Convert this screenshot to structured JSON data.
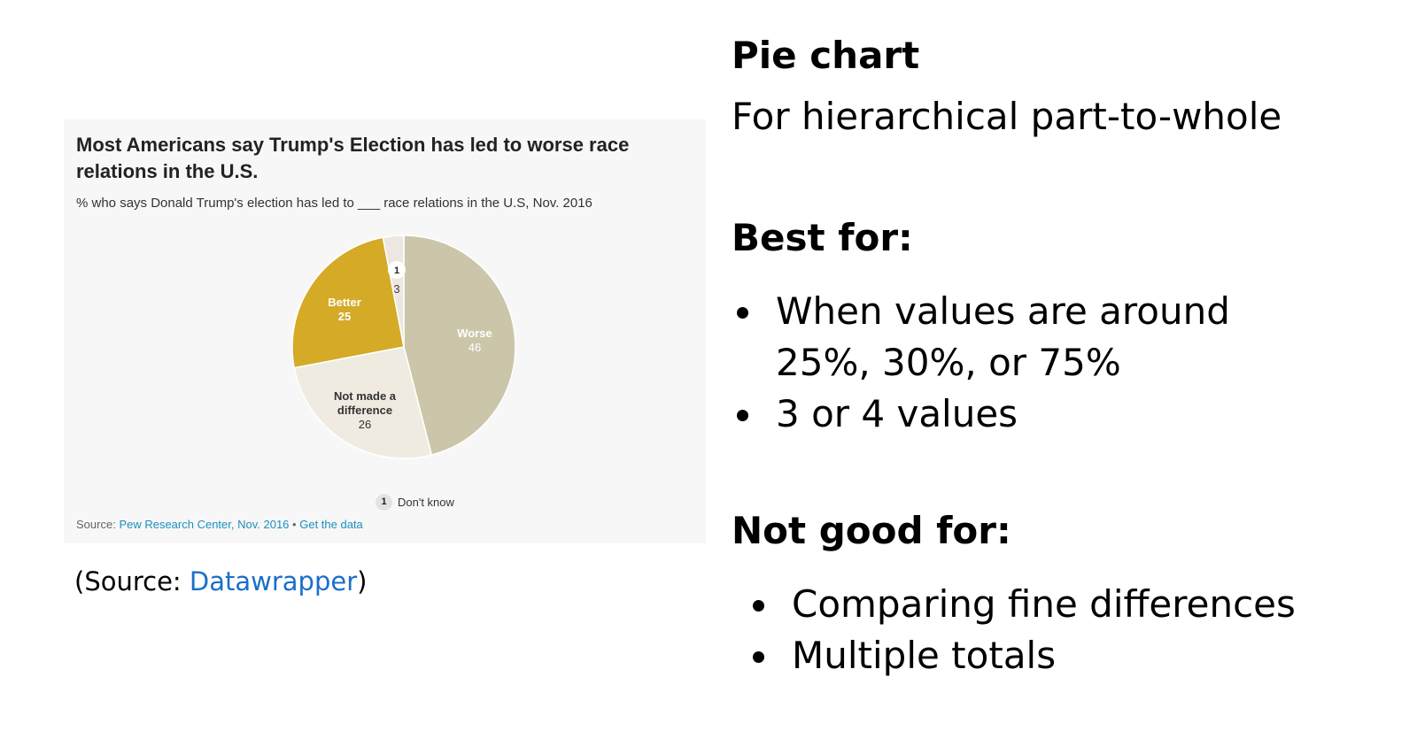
{
  "chart_data": {
    "type": "pie",
    "title": "Most Americans say Trump's Election has led to worse race relations in the U.S.",
    "subtitle": "% who says Donald Trump's election has led to ___ race relations in the U.S, Nov. 2016",
    "slices": [
      {
        "label": "Worse",
        "value": 46,
        "color": "#cbc6a9"
      },
      {
        "label": "Not made a difference",
        "value": 26,
        "color": "#efebe1"
      },
      {
        "label": "Better",
        "value": 25,
        "color": "#d4aa27"
      },
      {
        "label": "Don't know",
        "value": 3,
        "color": "#ece7e1"
      }
    ],
    "slice_labels": {
      "worse": {
        "name": "Worse",
        "value": "46"
      },
      "not_made": {
        "name_line1": "Not made a",
        "name_line2": "difference",
        "value": "26"
      },
      "better": {
        "name": "Better",
        "value": "25"
      },
      "dont_know": {
        "badge": "1",
        "value": "3"
      }
    },
    "legend": [
      {
        "badge": "1",
        "label": "Don't know"
      }
    ],
    "source": {
      "prefix": "Source:",
      "source_name": "Pew Research Center, Nov. 2016",
      "separator": "•",
      "data_link": "Get the data"
    }
  },
  "caption": {
    "prefix": "(Source: ",
    "link": "Datawrapper",
    "suffix": ")"
  },
  "panel": {
    "title": "Pie chart",
    "description": "For hierarchical part-to-whole",
    "best_for_heading": "Best for:",
    "best_for_items": [
      "When values are around 25%, 30%, or 75%",
      "3 or 4 values"
    ],
    "not_good_heading": "Not good for:",
    "not_good_items": [
      "Comparing fine differences",
      "Multiple totals"
    ]
  }
}
